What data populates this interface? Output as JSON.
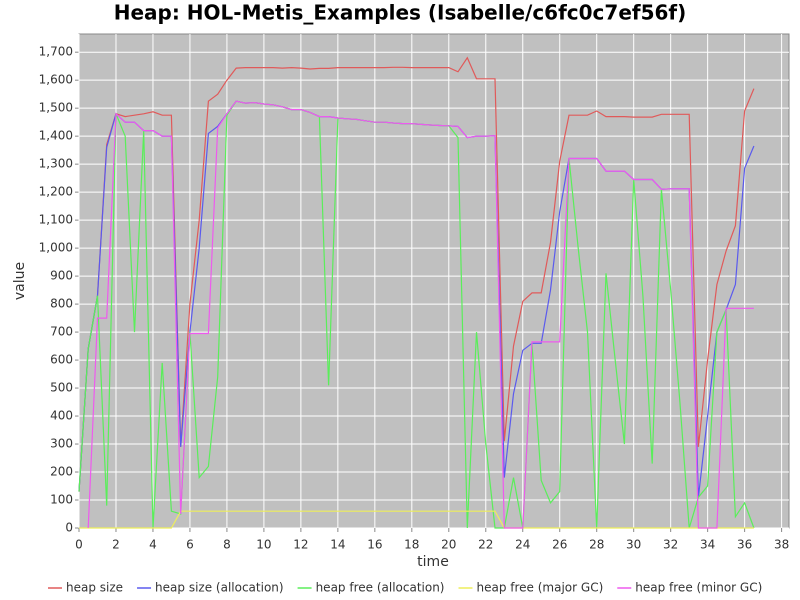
{
  "chart_data": {
    "type": "line",
    "title": "Heap: HOL-Metis_Examples (Isabelle/c6fc0c7ef56f)",
    "x_label": "time",
    "y_label": "value",
    "x": [
      0,
      0.5,
      1,
      1.5,
      2,
      2.5,
      3,
      3.5,
      4,
      4.5,
      5,
      5.5,
      6,
      6.5,
      7,
      7.5,
      8,
      8.5,
      9,
      9.5,
      10,
      10.5,
      11,
      11.5,
      12,
      12.5,
      13,
      13.5,
      14,
      14.5,
      15,
      15.5,
      16,
      16.5,
      17,
      17.5,
      18,
      18.5,
      19,
      19.5,
      20,
      20.5,
      21,
      21.5,
      22,
      22.5,
      23,
      23.5,
      24,
      24.5,
      25,
      25.5,
      26,
      26.5,
      27,
      27.5,
      28,
      28.5,
      29,
      29.5,
      30,
      30.5,
      31,
      31.5,
      32,
      32.5,
      33,
      33.5,
      34,
      34.5,
      35,
      35.5,
      36,
      36.5
    ],
    "series": [
      {
        "name": "heap size",
        "color": "#e05a5a",
        "values": [
          130,
          640,
          830,
          1370,
          1480,
          1470,
          1475,
          1480,
          1487,
          1475,
          1475,
          290,
          800,
          1100,
          1525,
          1550,
          1600,
          1643,
          1645,
          1645,
          1645,
          1645,
          1643,
          1645,
          1643,
          1640,
          1642,
          1642,
          1645,
          1645,
          1645,
          1645,
          1645,
          1645,
          1646,
          1646,
          1645,
          1645,
          1645,
          1645,
          1645,
          1630,
          1680,
          1605,
          1605,
          1605,
          310,
          650,
          810,
          840,
          840,
          1020,
          1310,
          1475,
          1475,
          1475,
          1490,
          1470,
          1470,
          1470,
          1468,
          1468,
          1468,
          1478,
          1478,
          1478,
          1478,
          290,
          600,
          870,
          990,
          1080,
          1490,
          1570
        ]
      },
      {
        "name": "heap size (allocation)",
        "color": "#5a5aee",
        "values": [
          130,
          640,
          830,
          1360,
          1480,
          1450,
          1450,
          1420,
          1420,
          1400,
          1400,
          290,
          700,
          1000,
          1410,
          1435,
          1480,
          1525,
          1518,
          1520,
          1515,
          1512,
          1505,
          1495,
          1495,
          1485,
          1470,
          1470,
          1465,
          1462,
          1460,
          1455,
          1450,
          1450,
          1447,
          1445,
          1445,
          1442,
          1440,
          1438,
          1437,
          1435,
          1395,
          1400,
          1400,
          1402,
          180,
          480,
          635,
          660,
          660,
          850,
          1130,
          1320,
          1320,
          1320,
          1320,
          1275,
          1275,
          1275,
          1245,
          1245,
          1245,
          1210,
          1212,
          1212,
          1212,
          110,
          400,
          700,
          780,
          870,
          1285,
          1365
        ]
      },
      {
        "name": "heap free (allocation)",
        "color": "#5aee5a",
        "values": [
          130,
          640,
          830,
          80,
          1480,
          1400,
          700,
          1420,
          0,
          590,
          60,
          50,
          700,
          180,
          220,
          540,
          1475,
          1525,
          1518,
          1520,
          1515,
          1512,
          1505,
          1495,
          1495,
          1485,
          1470,
          510,
          1465,
          1462,
          1460,
          1455,
          1450,
          1450,
          1447,
          1445,
          1445,
          1442,
          1440,
          1438,
          1437,
          1395,
          0,
          700,
          300,
          0,
          0,
          180,
          0,
          660,
          170,
          90,
          130,
          1320,
          1000,
          700,
          0,
          910,
          600,
          300,
          1245,
          830,
          230,
          1210,
          850,
          450,
          0,
          110,
          150,
          700,
          780,
          40,
          90,
          0
        ]
      },
      {
        "name": "heap free (major GC)",
        "color": "#eeee5a",
        "values": [
          0,
          0,
          0,
          0,
          0,
          0,
          0,
          0,
          0,
          0,
          0,
          60,
          60,
          60,
          60,
          60,
          60,
          60,
          60,
          60,
          60,
          60,
          60,
          60,
          60,
          60,
          60,
          60,
          60,
          60,
          60,
          60,
          60,
          60,
          60,
          60,
          60,
          60,
          60,
          60,
          60,
          60,
          60,
          60,
          60,
          60,
          0,
          0,
          0,
          0,
          0,
          0,
          0,
          0,
          0,
          0,
          0,
          0,
          0,
          0,
          0,
          0,
          0,
          0,
          0,
          0,
          0,
          0,
          0,
          0,
          0,
          0,
          0,
          0
        ]
      },
      {
        "name": "heap free (minor GC)",
        "color": "#ee5aee",
        "values": [
          null,
          0,
          750,
          750,
          1480,
          1450,
          1450,
          1420,
          1420,
          1400,
          1400,
          50,
          695,
          695,
          695,
          1430,
          1480,
          1525,
          1518,
          1520,
          1515,
          1512,
          1505,
          1495,
          1495,
          1485,
          1470,
          1470,
          1465,
          1462,
          1460,
          1455,
          1450,
          1450,
          1447,
          1445,
          1445,
          1442,
          1440,
          1438,
          1437,
          1435,
          1395,
          1400,
          1400,
          1402,
          0,
          0,
          0,
          665,
          665,
          665,
          665,
          1320,
          1320,
          1320,
          1320,
          1275,
          1275,
          1275,
          1245,
          1245,
          1245,
          1210,
          1212,
          1212,
          1212,
          0,
          0,
          0,
          785,
          785,
          785,
          785
        ]
      }
    ],
    "xlim": [
      0,
      38.4
    ],
    "ylim": [
      0,
      1765
    ],
    "xticks": [
      0,
      2,
      4,
      6,
      8,
      10,
      12,
      14,
      16,
      18,
      20,
      22,
      24,
      26,
      28,
      30,
      32,
      34,
      36,
      38
    ],
    "yticks": [
      0,
      100,
      200,
      300,
      400,
      500,
      600,
      700,
      800,
      900,
      {
        "value": 1000,
        "label": "1,000"
      },
      {
        "value": 1100,
        "label": "1,100"
      },
      {
        "value": 1200,
        "label": "1,200"
      },
      {
        "value": 1300,
        "label": "1,300"
      },
      {
        "value": 1400,
        "label": "1,400"
      },
      {
        "value": 1500,
        "label": "1,500"
      },
      {
        "value": 1600,
        "label": "1,600"
      },
      {
        "value": 1700,
        "label": "1,700"
      }
    ],
    "grid": true,
    "legend": "bottom"
  }
}
